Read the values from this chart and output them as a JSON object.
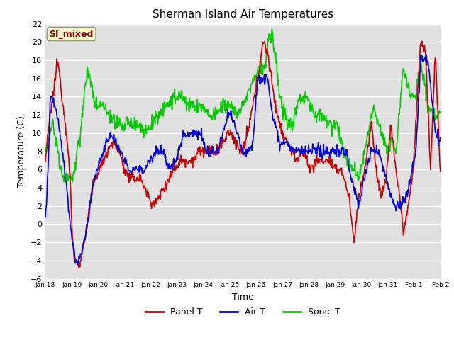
{
  "title": "Sherman Island Air Temperatures",
  "xlabel": "Time",
  "ylabel": "Temperature (C)",
  "ylim": [
    -6,
    22
  ],
  "yticks": [
    -6,
    -4,
    -2,
    0,
    2,
    4,
    6,
    8,
    10,
    12,
    14,
    16,
    18,
    20,
    22
  ],
  "x_tick_labels": [
    "Jan 18",
    "Jan 19",
    "Jan 20",
    "Jan 21",
    "Jan 22",
    "Jan 23",
    "Jan 24",
    "Jan 25",
    "Jan 26",
    "Jan 27",
    "Jan 28",
    "Jan 29",
    "Jan 30",
    "Jan 31",
    "Feb 1",
    "Feb 2"
  ],
  "panel_t_color": "#cc0000",
  "air_t_color": "#0000dd",
  "sonic_t_color": "#00cc00",
  "bg_color": "#e0e0e0",
  "annotation_text": "SI_mixed",
  "annotation_bg": "#ffffcc",
  "annotation_fg": "#880000",
  "legend_labels": [
    "Panel T",
    "Air T",
    "Sonic T"
  ],
  "line_width": 1.2,
  "title_fontsize": 11,
  "axis_label_fontsize": 9,
  "tick_fontsize": 8
}
